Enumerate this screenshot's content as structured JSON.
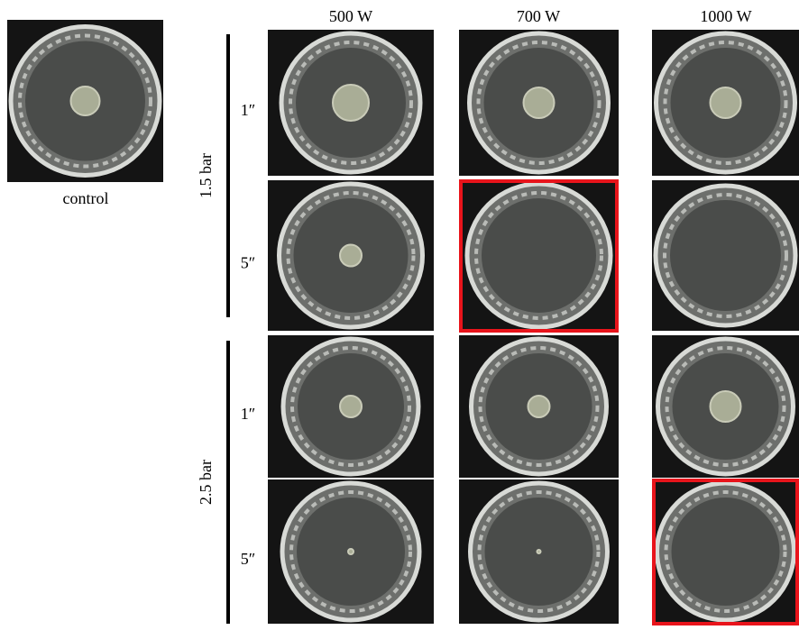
{
  "control": "control",
  "columns": [
    "500 W",
    "700 W",
    "1000 W"
  ],
  "groups": [
    {
      "label": "1.5 bar",
      "rows": [
        {
          "label": "1″",
          "highlight": [
            false,
            false,
            false
          ]
        },
        {
          "label": "5″",
          "highlight": [
            false,
            true,
            false
          ]
        }
      ]
    },
    {
      "label": "2.5 bar",
      "rows": [
        {
          "label": "1″",
          "highlight": [
            false,
            false,
            false
          ]
        },
        {
          "label": "5″",
          "highlight": [
            false,
            false,
            true
          ]
        }
      ]
    }
  ]
}
